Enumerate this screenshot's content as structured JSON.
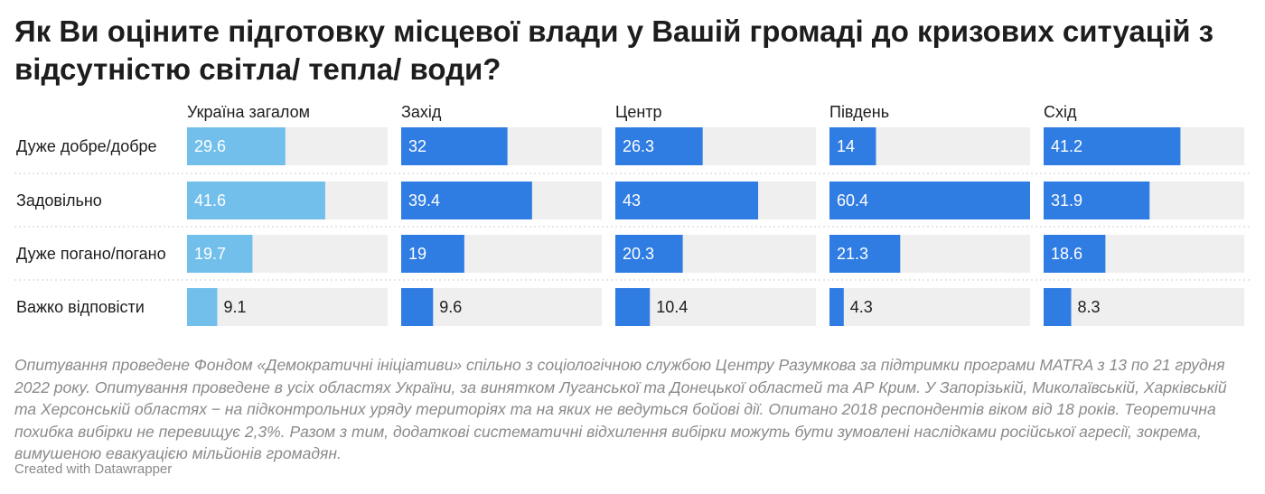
{
  "page": {
    "title": "Як Ви оціните підготовку місцевої влади у Вашій громаді до кризових ситуацій з відсутністю світла/ тепла/ води?",
    "notes": "Опитування проведене Фондом «Демократичні ініціативи» спільно з соціологічною службою Центру Разумкова за підтримки програми MATRA з 13 по 21 грудня 2022 року. Опитування проведене в усіх областях України, за винятком Луганської та Донецької областей та АР Крим. У Запорізькій, Миколаївській, Харківській та Херсонській областях − на підконтрольних уряду територіях та на яких не ведуться бойові дії. Опитано 2018 респондентів віком від 18 років. Теоретична похибка вибірки не перевищує 2,3%. Разом з тим, додаткові систематичні відхилення вибірки можуть бути зумовлені наслідками російської агресії, зокрема, вимушеною евакуацією мільйонів громадян.",
    "credit": "Created with Datawrapper"
  },
  "colors": {
    "ukraine_bar": "#72bfec",
    "region_bar": "#2f7ce2",
    "track": "#efefef",
    "divider": "#cfcfcf",
    "text": "#1d1d1d",
    "muted": "#8a8a8a"
  },
  "chart_data": {
    "type": "bar",
    "orientation": "horizontal",
    "layout": "small-multiples",
    "title": "",
    "categories": [
      "Дуже добре/добре",
      "Задовільно",
      "Дуже погано/погано",
      "Важко відповісти"
    ],
    "xlim": [
      0,
      60.4
    ],
    "series": [
      {
        "name": "Україна загалом",
        "values": [
          29.6,
          41.6,
          19.7,
          9.1
        ]
      },
      {
        "name": "Захід",
        "values": [
          32,
          39.4,
          19,
          9.6
        ]
      },
      {
        "name": "Центр",
        "values": [
          26.3,
          43,
          20.3,
          10.4
        ]
      },
      {
        "name": "Південь",
        "values": [
          14,
          60.4,
          21.3,
          4.3
        ]
      },
      {
        "name": "Схід",
        "values": [
          41.2,
          31.9,
          18.6,
          8.3
        ]
      }
    ]
  }
}
